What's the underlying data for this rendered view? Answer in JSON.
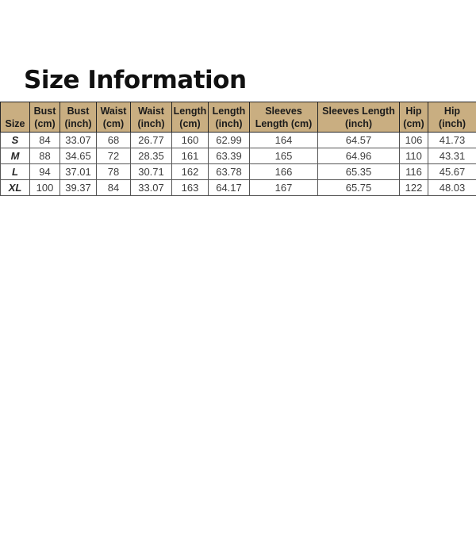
{
  "page": {
    "title": "Size Information",
    "background": "#ffffff"
  },
  "colors": {
    "header_bg": "#c9ae81",
    "header_text": "#1b1b1b",
    "header_border": "#262626",
    "cell_border": "#565656",
    "cell_text": "#3d3d3d",
    "size_label_text": "#262626",
    "title_text": "#111111"
  },
  "size_table": {
    "columns": [
      {
        "label": "Size"
      },
      {
        "label": "Bust\n(cm)"
      },
      {
        "label": "Bust\n(inch)"
      },
      {
        "label": "Waist\n(cm)"
      },
      {
        "label": "Waist\n(inch)"
      },
      {
        "label": "Length\n(cm)"
      },
      {
        "label": "Length\n(inch)"
      },
      {
        "label": "Sleeves\nLength (cm)"
      },
      {
        "label": "Sleeves Length\n(inch)"
      },
      {
        "label": "Hip\n(cm)"
      },
      {
        "label": "Hip\n(inch)"
      }
    ],
    "rows": [
      {
        "cells": [
          "S",
          "84",
          "33.07",
          "68",
          "26.77",
          "160",
          "62.99",
          "164",
          "64.57",
          "106",
          "41.73"
        ]
      },
      {
        "cells": [
          "M",
          "88",
          "34.65",
          "72",
          "28.35",
          "161",
          "63.39",
          "165",
          "64.96",
          "110",
          "43.31"
        ]
      },
      {
        "cells": [
          "L",
          "94",
          "37.01",
          "78",
          "30.71",
          "162",
          "63.78",
          "166",
          "65.35",
          "116",
          "45.67"
        ]
      },
      {
        "cells": [
          "XL",
          "100",
          "39.37",
          "84",
          "33.07",
          "163",
          "64.17",
          "167",
          "65.75",
          "122",
          "48.03"
        ]
      }
    ]
  }
}
